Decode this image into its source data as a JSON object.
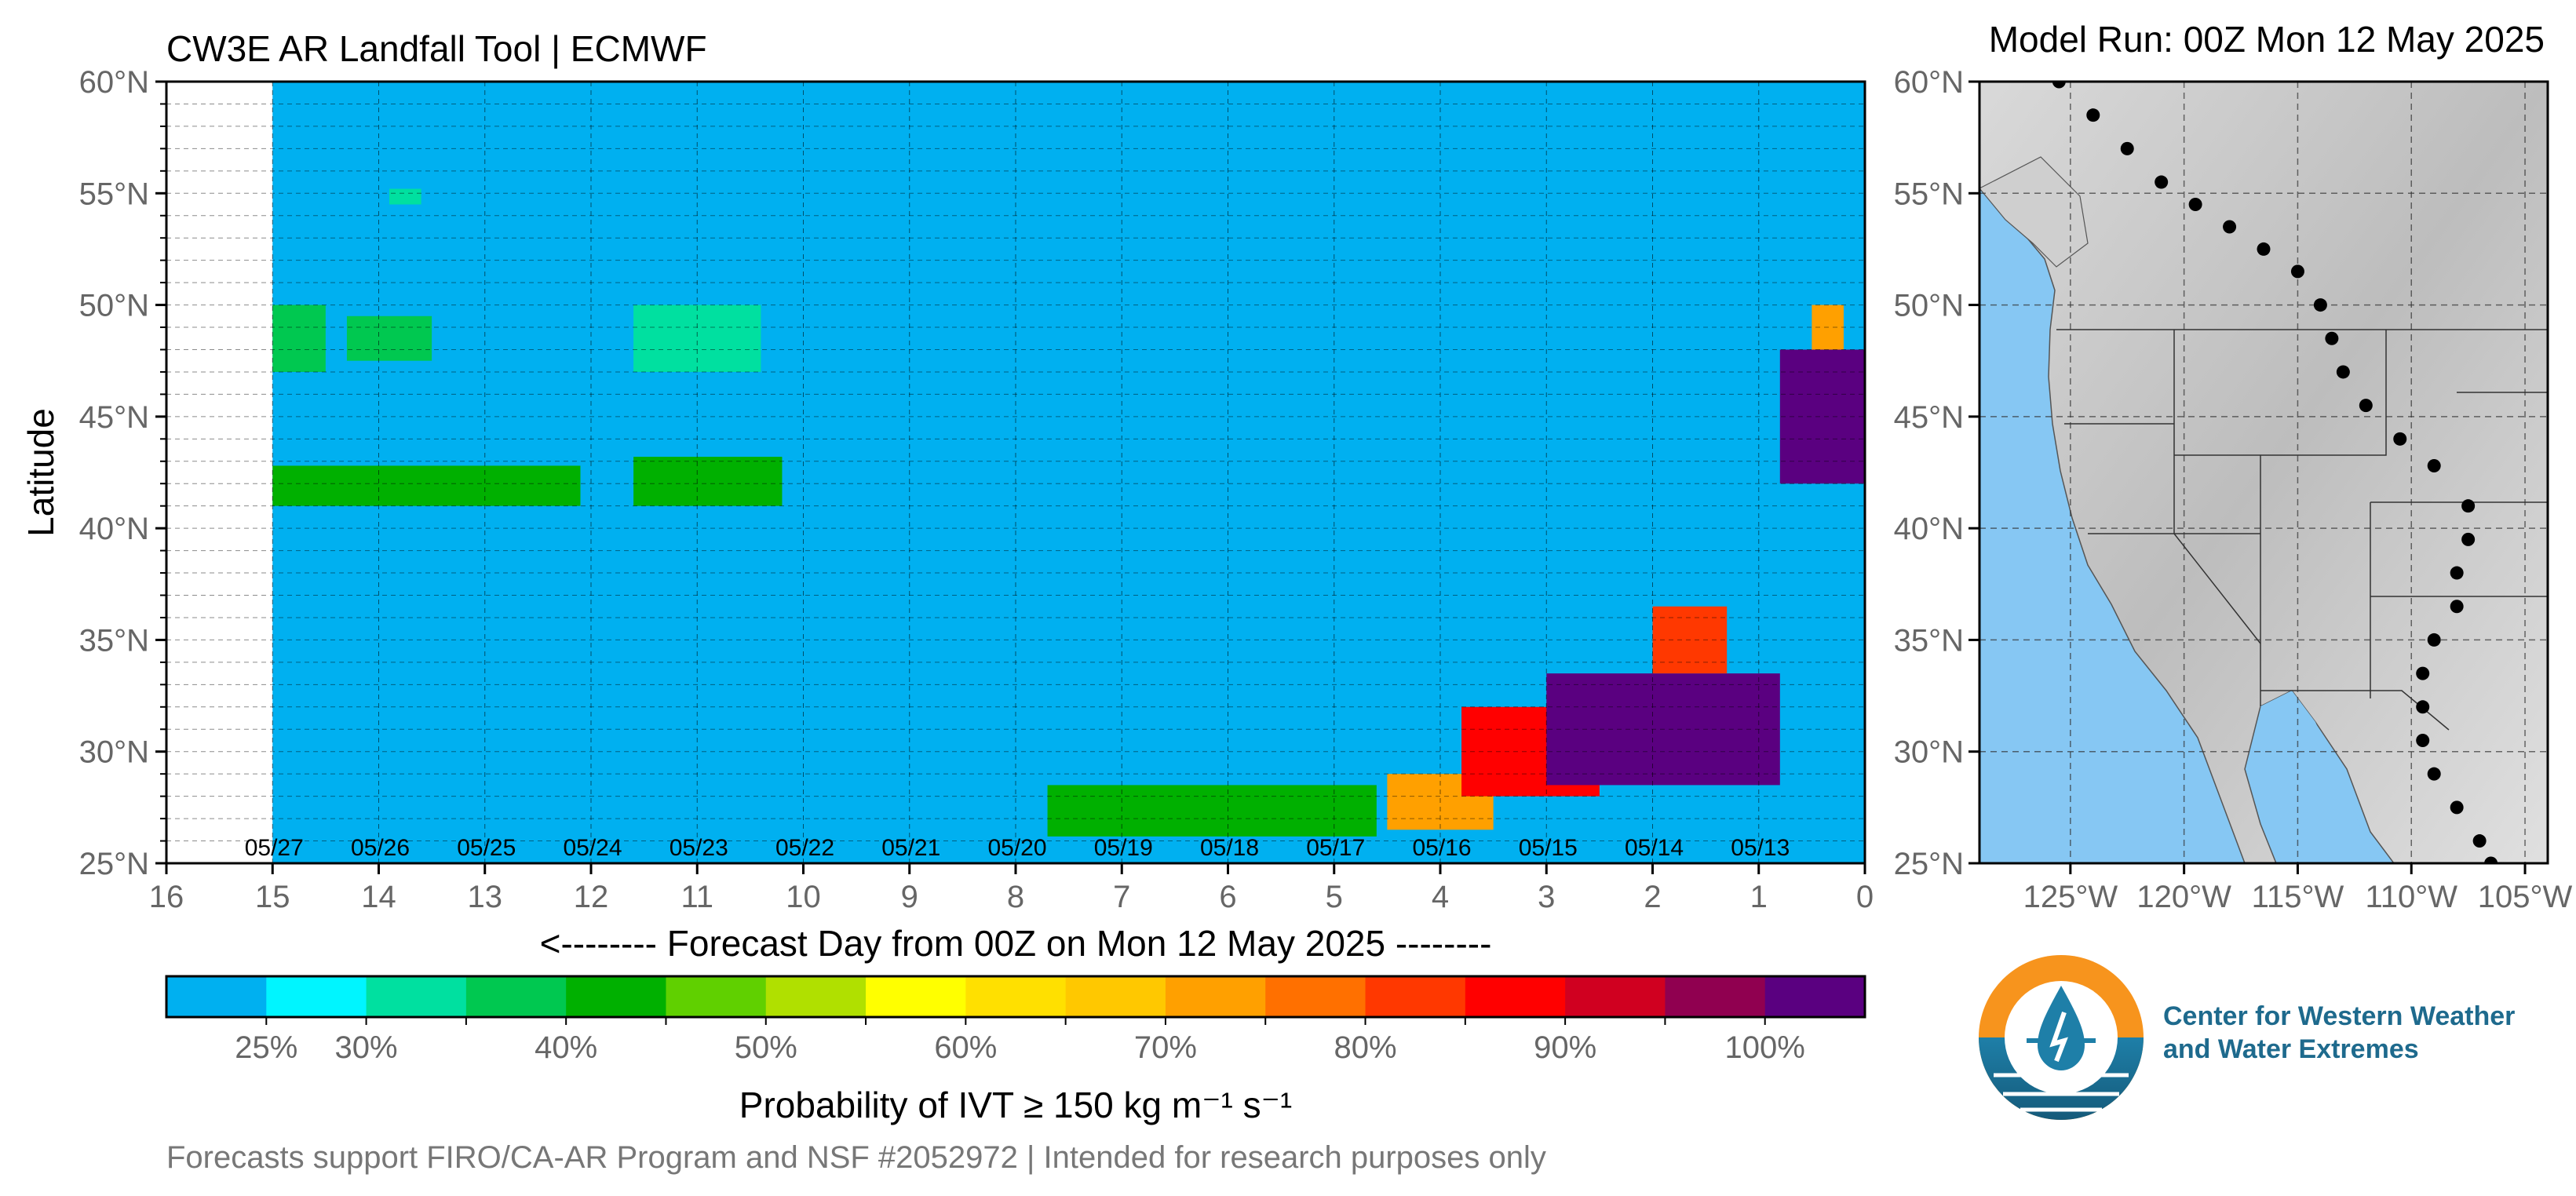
{
  "title_left": "CW3E AR Landfall Tool | ECMWF",
  "title_right": "Model Run: 00Z Mon 12 May 2025",
  "footer": "Forecasts support FIRO/CA-AR Program and NSF #2052972 | Intended for research purposes only",
  "logo": {
    "line1": "Center for Western Weather",
    "line2": "and Water Extremes"
  },
  "chart_data": [
    {
      "type": "heatmap",
      "title": "",
      "xlabel": "<-------- Forecast Day from 00Z on Mon 12 May 2025 --------",
      "ylabel": "Latitude",
      "xlim": [
        16,
        0
      ],
      "ylim": [
        25,
        60
      ],
      "x_ticks": [
        "16",
        "15",
        "14",
        "13",
        "12",
        "11",
        "10",
        "9",
        "8",
        "7",
        "6",
        "5",
        "4",
        "3",
        "2",
        "1",
        "0"
      ],
      "y_ticks": [
        "25°N",
        "30°N",
        "35°N",
        "40°N",
        "45°N",
        "50°N",
        "55°N",
        "60°N"
      ],
      "date_labels": [
        {
          "day": 15,
          "label": "05/27"
        },
        {
          "day": 14,
          "label": "05/26"
        },
        {
          "day": 13,
          "label": "05/25"
        },
        {
          "day": 12,
          "label": "05/24"
        },
        {
          "day": 11,
          "label": "05/23"
        },
        {
          "day": 10,
          "label": "05/22"
        },
        {
          "day": 9,
          "label": "05/21"
        },
        {
          "day": 8,
          "label": "05/20"
        },
        {
          "day": 7,
          "label": "05/19"
        },
        {
          "day": 6,
          "label": "05/18"
        },
        {
          "day": 5,
          "label": "05/17"
        },
        {
          "day": 4,
          "label": "05/16"
        },
        {
          "day": 3,
          "label": "05/15"
        },
        {
          "day": 2,
          "label": "05/14"
        },
        {
          "day": 1,
          "label": "05/13"
        }
      ],
      "no_data_range_days": [
        15,
        16
      ],
      "background_probability": 20,
      "features": [
        {
          "day_start": 12.1,
          "day_end": 15.0,
          "lat_start": 41.0,
          "lat_end": 42.8,
          "prob": 40
        },
        {
          "day_start": 10.2,
          "day_end": 11.6,
          "lat_start": 41.0,
          "lat_end": 43.2,
          "prob": 40
        },
        {
          "day_start": 10.4,
          "day_end": 11.6,
          "lat_start": 47.0,
          "lat_end": 50.0,
          "prob": 30
        },
        {
          "day_start": 14.5,
          "day_end": 15.0,
          "lat_start": 47.0,
          "lat_end": 50.0,
          "prob": 35
        },
        {
          "day_start": 13.5,
          "day_end": 14.3,
          "lat_start": 47.5,
          "lat_end": 49.5,
          "prob": 35
        },
        {
          "day_start": 13.6,
          "day_end": 13.9,
          "lat_start": 54.5,
          "lat_end": 55.2,
          "prob": 30
        },
        {
          "day_start": 4.6,
          "day_end": 7.7,
          "lat_start": 26.2,
          "lat_end": 28.5,
          "prob": 40
        },
        {
          "day_start": 3.5,
          "day_end": 4.5,
          "lat_start": 26.5,
          "lat_end": 29.0,
          "prob": 70
        },
        {
          "day_start": 2.5,
          "day_end": 3.8,
          "lat_start": 28.0,
          "lat_end": 32.0,
          "prob": 85
        },
        {
          "day_start": 0.8,
          "day_end": 3.0,
          "lat_start": 28.5,
          "lat_end": 33.5,
          "prob": 100
        },
        {
          "day_start": 1.3,
          "day_end": 2.0,
          "lat_start": 33.5,
          "lat_end": 36.5,
          "prob": 80
        },
        {
          "day_start": 0.0,
          "day_end": 0.8,
          "lat_start": 42.0,
          "lat_end": 48.0,
          "prob": 100
        },
        {
          "day_start": 0.2,
          "day_end": 0.5,
          "lat_start": 48.0,
          "lat_end": 50.0,
          "prob": 70
        }
      ]
    },
    {
      "type": "colorbar",
      "label": "Probability of IVT ≥ 150 kg m⁻¹ s⁻¹",
      "tick_labels": [
        "25%",
        "30%",
        "40%",
        "50%",
        "60%",
        "70%",
        "80%",
        "90%",
        "100%"
      ],
      "colors": [
        "#00b0f0",
        "#00f5ff",
        "#00e0a0",
        "#00c850",
        "#00b000",
        "#60d000",
        "#b0e000",
        "#ffff00",
        "#ffe000",
        "#ffc800",
        "#ffa000",
        "#ff7000",
        "#ff3800",
        "#ff0000",
        "#d00020",
        "#900050",
        "#5a0080"
      ]
    },
    {
      "type": "map",
      "title": "",
      "lon_ticks": [
        "125°W",
        "120°W",
        "115°W",
        "110°W",
        "105°W"
      ],
      "lat_ticks": [
        "25°N",
        "30°N",
        "35°N",
        "40°N",
        "45°N",
        "50°N",
        "55°N",
        "60°N"
      ],
      "transect_points": [
        {
          "lon": -125.5,
          "lat": 60.0
        },
        {
          "lon": -124.0,
          "lat": 58.5
        },
        {
          "lon": -122.5,
          "lat": 57.0
        },
        {
          "lon": -121.0,
          "lat": 55.5
        },
        {
          "lon": -119.5,
          "lat": 54.5
        },
        {
          "lon": -118.0,
          "lat": 53.5
        },
        {
          "lon": -116.5,
          "lat": 52.5
        },
        {
          "lon": -115.0,
          "lat": 51.5
        },
        {
          "lon": -114.0,
          "lat": 50.0
        },
        {
          "lon": -113.5,
          "lat": 48.5
        },
        {
          "lon": -113.0,
          "lat": 47.0
        },
        {
          "lon": -112.0,
          "lat": 45.5
        },
        {
          "lon": -110.5,
          "lat": 44.0
        },
        {
          "lon": -109.0,
          "lat": 42.8
        },
        {
          "lon": -107.5,
          "lat": 41.0
        },
        {
          "lon": -107.5,
          "lat": 39.5
        },
        {
          "lon": -108.0,
          "lat": 38.0
        },
        {
          "lon": -108.0,
          "lat": 36.5
        },
        {
          "lon": -109.0,
          "lat": 35.0
        },
        {
          "lon": -109.5,
          "lat": 33.5
        },
        {
          "lon": -109.5,
          "lat": 32.0
        },
        {
          "lon": -109.5,
          "lat": 30.5
        },
        {
          "lon": -109.0,
          "lat": 29.0
        },
        {
          "lon": -108.0,
          "lat": 27.5
        },
        {
          "lon": -107.0,
          "lat": 26.0
        },
        {
          "lon": -106.5,
          "lat": 25.0
        }
      ]
    }
  ]
}
